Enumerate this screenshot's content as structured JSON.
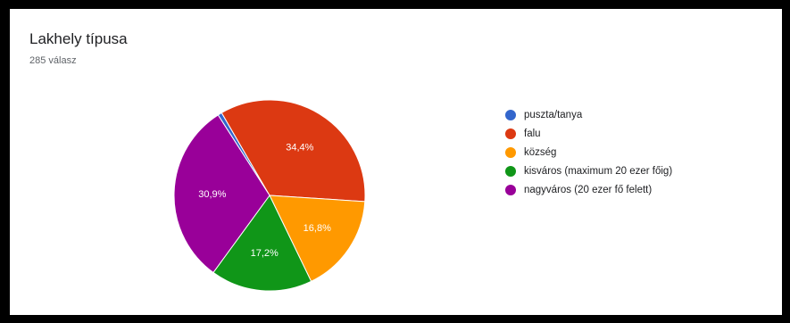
{
  "title": "Lakhely típusa",
  "subtitle": "285 válasz",
  "chart_data": {
    "type": "pie",
    "title": "Lakhely típusa",
    "categories": [
      "puszta/tanya",
      "falu",
      "község",
      "kisváros (maximum 20 ezer főig)",
      "nagyváros (20 ezer fő felett)"
    ],
    "values": [
      0.7,
      34.4,
      16.8,
      17.2,
      30.9
    ],
    "value_labels": [
      "",
      "34,4%",
      "16,8%",
      "17,2%",
      "30,9%"
    ],
    "colors": [
      "#3366cc",
      "#dc3912",
      "#ff9900",
      "#109618",
      "#990099"
    ],
    "legend_position": "right"
  }
}
